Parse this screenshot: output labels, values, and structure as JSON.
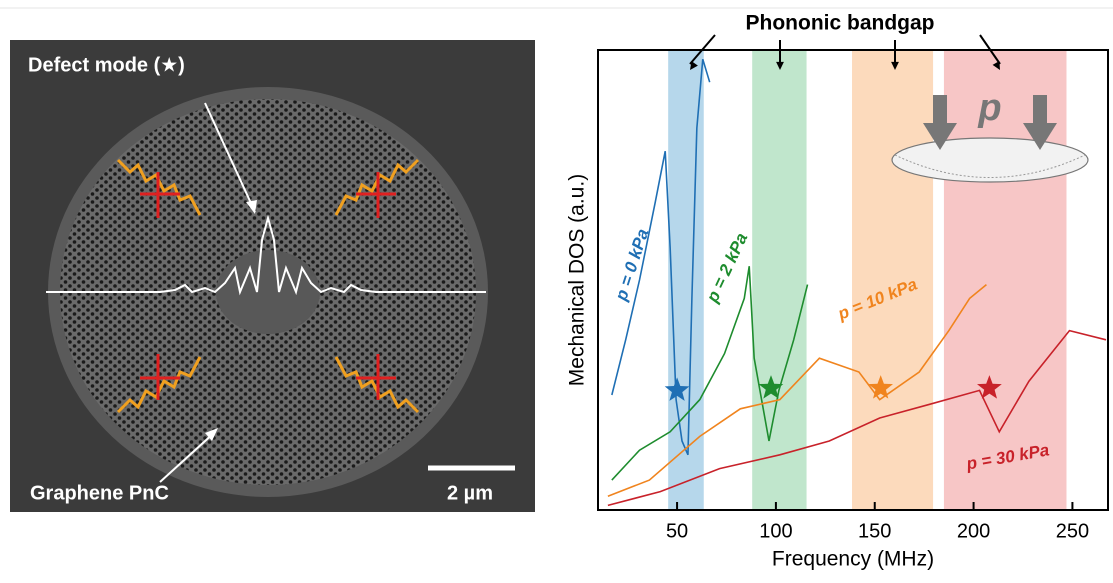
{
  "sem_image": {
    "defect_label": "Defect mode (★)",
    "lattice_label": "Graphene PnC",
    "scale_bar": "2 µm"
  },
  "chart_data": {
    "type": "line",
    "annotation": "Phononic bandgap",
    "inset_label": "p",
    "xlabel": "Frequency (MHz)",
    "ylabel": "Mechanical DOS (a.u.)",
    "xlim": [
      10,
      268
    ],
    "ylim": [
      0,
      100
    ],
    "xticks": [
      50,
      100,
      150,
      200,
      250
    ],
    "bandgaps": [
      {
        "range": [
          45.5,
          63.5
        ],
        "color": "#a9d0e8"
      },
      {
        "range": [
          88,
          115.5
        ],
        "color": "#b5e2c3"
      },
      {
        "range": [
          138.5,
          179.5
        ],
        "color": "#fbd3b0"
      },
      {
        "range": [
          185,
          247
        ],
        "color": "#f6bcbc"
      }
    ],
    "series": [
      {
        "name": "p = 0 kPa",
        "color": "#1f6fb4",
        "x": [
          17,
          24,
          31,
          39,
          44,
          46.5,
          49.5,
          52.5,
          55.5,
          57.5,
          60,
          63,
          66.5
        ],
        "values": [
          25,
          37,
          50,
          67,
          78,
          57,
          24,
          15,
          12,
          46,
          83,
          98,
          93
        ]
      },
      {
        "name": "p = 2 kPa",
        "color": "#1e8c2e",
        "x": [
          17,
          31,
          46.5,
          61.5,
          74,
          84,
          86.5,
          89,
          96.5,
          101.5,
          109,
          116
        ],
        "values": [
          6.5,
          13,
          17,
          24,
          34,
          46,
          53,
          33,
          15,
          26,
          37,
          49
        ]
      },
      {
        "name": "p = 10 kPa",
        "color": "#f0841e",
        "x": [
          15,
          36,
          61.5,
          82,
          102,
          122,
          142,
          152.5,
          172.5,
          187.5,
          198,
          206.5
        ],
        "values": [
          3,
          6.5,
          16,
          22,
          24,
          33,
          30,
          24,
          30,
          39,
          46,
          49
        ]
      },
      {
        "name": "p = 30 kPa",
        "color": "#c8222a",
        "x": [
          15,
          41.5,
          71.5,
          102,
          127,
          152.5,
          178,
          203,
          213,
          228,
          248.5,
          267
        ],
        "values": [
          1,
          4,
          9,
          12,
          15,
          20,
          23,
          26,
          17,
          28,
          39,
          37
        ]
      }
    ],
    "defect_modes": {
      "x": [
        50,
        97.5,
        153,
        208
      ],
      "values": [
        26,
        26.5,
        26.5,
        26.5
      ]
    }
  }
}
